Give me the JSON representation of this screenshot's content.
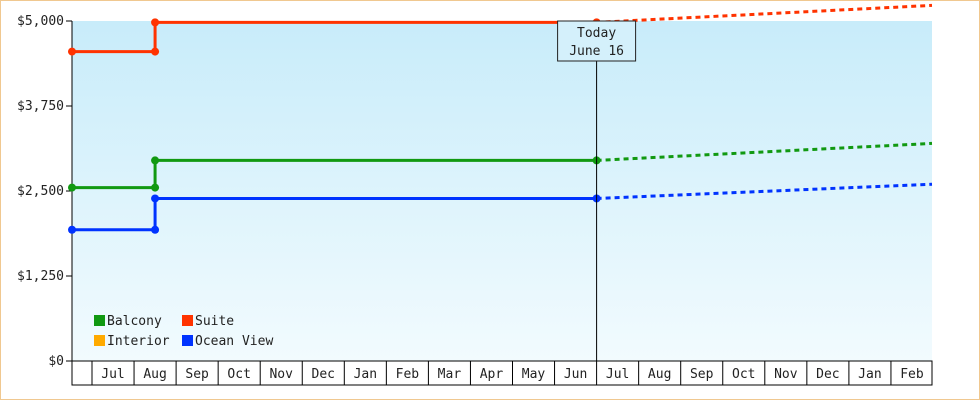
{
  "chart_data": {
    "type": "line",
    "title": "",
    "xlabel": "",
    "ylabel": "",
    "x_ticks": [
      "Jul",
      "Aug",
      "Sep",
      "Oct",
      "Nov",
      "Dec",
      "Jan",
      "Feb",
      "Mar",
      "Apr",
      "May",
      "Jun",
      "Jul",
      "Aug",
      "Sep",
      "Oct",
      "Nov",
      "Dec",
      "Jan",
      "Feb"
    ],
    "y_ticks": [
      "$0",
      "$1,250",
      "$2,500",
      "$3,750",
      "$5,000"
    ],
    "ylim": [
      0,
      5000
    ],
    "grid": false,
    "legend_position": "bottom-left",
    "annotation": {
      "line1": "Today",
      "line2": "June 16",
      "at": 11.5
    },
    "series": [
      {
        "name": "Balcony",
        "color": "#119911",
        "history": [
          [
            -0.5,
            2550
          ],
          [
            1,
            2550
          ],
          [
            1,
            2950
          ],
          [
            11.5,
            2950
          ]
        ],
        "forecast": [
          [
            11.5,
            2950
          ],
          [
            20.5,
            3200
          ]
        ]
      },
      {
        "name": "Suite",
        "color": "#ff3300",
        "history": [
          [
            -0.5,
            4550
          ],
          [
            1,
            4550
          ],
          [
            1,
            4980
          ],
          [
            11.5,
            4980
          ]
        ],
        "forecast": [
          [
            11.5,
            4980
          ],
          [
            20.5,
            5230
          ]
        ]
      },
      {
        "name": "Interior",
        "color": "#ffaa00",
        "history": [],
        "forecast": []
      },
      {
        "name": "Ocean View",
        "color": "#0033ff",
        "history": [
          [
            -0.5,
            1930
          ],
          [
            1,
            1930
          ],
          [
            1,
            2390
          ],
          [
            11.5,
            2390
          ]
        ],
        "forecast": [
          [
            11.5,
            2390
          ],
          [
            20.5,
            2600
          ]
        ]
      }
    ]
  }
}
